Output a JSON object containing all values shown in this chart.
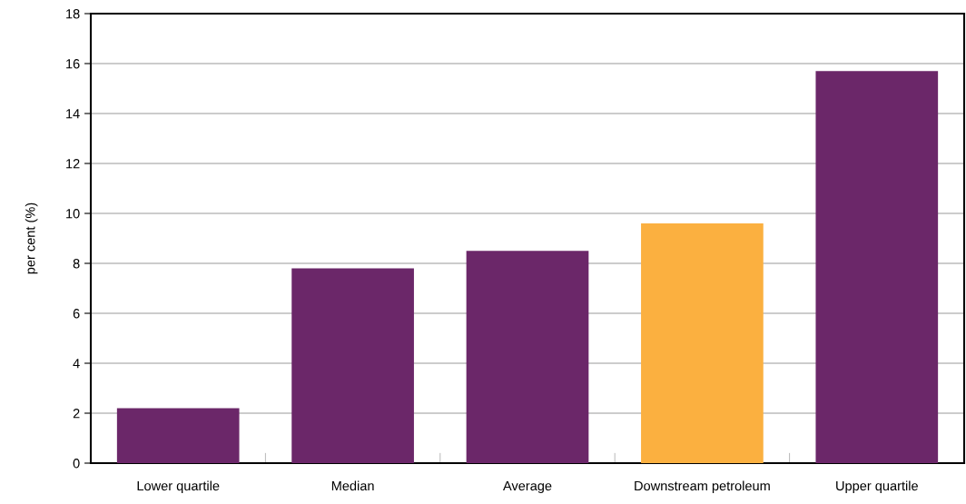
{
  "chart_data": {
    "type": "bar",
    "ylabel": "per cent (%)",
    "categories": [
      "Lower quartile",
      "Median",
      "Average",
      "Downstream petroleum",
      "Upper quartile"
    ],
    "values": [
      2.2,
      7.8,
      8.5,
      9.6,
      15.7
    ],
    "colors": [
      "#6b2769",
      "#6b2769",
      "#6b2769",
      "#fbb040",
      "#6b2769"
    ],
    "ylim": [
      0,
      18
    ],
    "yticks": [
      0,
      2,
      4,
      6,
      8,
      10,
      12,
      14,
      16,
      18
    ],
    "grid": "y"
  }
}
